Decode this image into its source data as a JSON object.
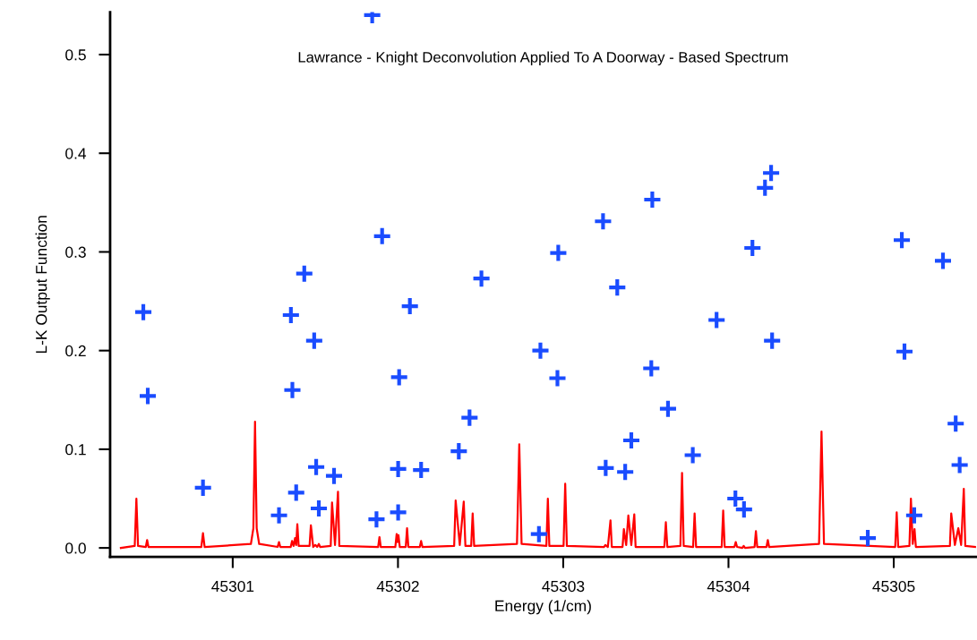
{
  "chart_data": {
    "type": "line",
    "title": "Lawrance - Knight Deconvolution Applied To A Doorway - Based Spectrum",
    "xlabel": "Energy (1/cm)",
    "ylabel": "L-K Output Function",
    "xlim": [
      45300.258,
      45305.498
    ],
    "ylim": [
      -0.009,
      0.543
    ],
    "xticks": [
      45301,
      45302,
      45303,
      45304,
      45305
    ],
    "yticks": [
      {
        "value": 0.0,
        "label": "0.0"
      },
      {
        "value": 0.1,
        "label": "0.1"
      },
      {
        "value": 0.2,
        "label": "0.2"
      },
      {
        "value": 0.3,
        "label": "0.3"
      },
      {
        "value": 0.4,
        "label": "0.4"
      },
      {
        "value": 0.5,
        "label": "0.5"
      }
    ],
    "grid": false,
    "legend": false,
    "series": [
      {
        "color": "#ff0000",
        "line_style": "solid",
        "marker": "none",
        "x": [
          45300.323,
          45300.407,
          45300.417,
          45300.427,
          45300.474,
          45300.482,
          45300.49,
          45300.81,
          45300.82,
          45300.83,
          45301.11,
          45301.125,
          45301.135,
          45301.145,
          45301.16,
          45301.272,
          45301.28,
          45301.288,
          45301.351,
          45301.359,
          45301.368,
          45301.377,
          45301.384,
          45301.391,
          45301.399,
          45301.465,
          45301.473,
          45301.487,
          45301.5,
          45301.511,
          45301.521,
          45301.529,
          45301.593,
          45301.601,
          45301.619,
          45301.637,
          45301.645,
          45301.88,
          45301.888,
          45301.896,
          45301.984,
          45301.992,
          45301.998,
          45302.003,
          45302.011,
          45302.047,
          45302.055,
          45302.063,
          45302.132,
          45302.14,
          45302.148,
          45302.34,
          45302.349,
          45302.374,
          45302.398,
          45302.408,
          45302.443,
          45302.452,
          45302.461,
          45302.72,
          45302.734,
          45302.748,
          45302.898,
          45302.907,
          45302.916,
          45303.002,
          45303.012,
          45303.022,
          45303.247,
          45303.255,
          45303.27,
          45303.286,
          45303.294,
          45303.359,
          45303.367,
          45303.381,
          45303.394,
          45303.412,
          45303.43,
          45303.438,
          45303.612,
          45303.621,
          45303.63,
          45303.709,
          45303.719,
          45303.729,
          45303.786,
          45303.795,
          45303.804,
          45303.959,
          45303.968,
          45303.977,
          45304.036,
          45304.044,
          45304.052,
          45304.084,
          45304.092,
          45304.1,
          45304.158,
          45304.166,
          45304.174,
          45304.23,
          45304.238,
          45304.246,
          45304.548,
          45304.563,
          45304.578,
          45305.009,
          45305.018,
          45305.027,
          45305.095,
          45305.104,
          45305.115,
          45305.126,
          45305.134,
          45305.34,
          45305.348,
          45305.37,
          45305.391,
          45305.408,
          45305.424,
          45305.433,
          45305.498
        ],
        "values": [
          0.0,
          0.002,
          0.05,
          0.002,
          0.001,
          0.008,
          0.001,
          0.001,
          0.015,
          0.001,
          0.004,
          0.02,
          0.128,
          0.02,
          0.004,
          0.001,
          0.006,
          0.001,
          0.001,
          0.007,
          0.002,
          0.01,
          0.003,
          0.024,
          0.002,
          0.002,
          0.023,
          0.001,
          0.003,
          0.001,
          0.004,
          0.001,
          0.002,
          0.046,
          0.003,
          0.057,
          0.002,
          0.001,
          0.011,
          0.001,
          0.001,
          0.014,
          0.006,
          0.013,
          0.001,
          0.001,
          0.02,
          0.001,
          0.001,
          0.007,
          0.001,
          0.002,
          0.048,
          0.003,
          0.047,
          0.002,
          0.002,
          0.035,
          0.002,
          0.004,
          0.105,
          0.004,
          0.002,
          0.05,
          0.002,
          0.002,
          0.065,
          0.002,
          0.001,
          0.003,
          0.001,
          0.028,
          0.001,
          0.001,
          0.019,
          0.003,
          0.033,
          0.003,
          0.034,
          0.001,
          0.001,
          0.026,
          0.001,
          0.002,
          0.076,
          0.002,
          0.001,
          0.035,
          0.001,
          0.001,
          0.038,
          0.001,
          0.001,
          0.006,
          0.001,
          0.0,
          0.002,
          0.0,
          0.001,
          0.017,
          0.001,
          0.001,
          0.008,
          0.001,
          0.004,
          0.118,
          0.004,
          0.001,
          0.036,
          0.001,
          0.002,
          0.05,
          0.004,
          0.019,
          0.001,
          0.002,
          0.035,
          0.003,
          0.02,
          0.003,
          0.06,
          0.002,
          0.001
        ]
      },
      {
        "type": "scatter",
        "color": "#1a4cff",
        "marker": "cross",
        "x": [
          45300.459,
          45300.486,
          45300.82,
          45301.28,
          45301.361,
          45301.352,
          45301.433,
          45301.384,
          45301.505,
          45301.493,
          45301.521,
          45301.613,
          45301.844,
          45301.904,
          45301.87,
          45302.001,
          45302.001,
          45302.007,
          45302.072,
          45302.14,
          45302.368,
          45302.433,
          45302.505,
          45302.853,
          45302.862,
          45302.965,
          45302.97,
          45303.241,
          45303.257,
          45303.327,
          45303.375,
          45303.412,
          45303.539,
          45303.533,
          45303.634,
          45303.784,
          45303.928,
          45304.042,
          45304.094,
          45304.145,
          45304.221,
          45304.258,
          45304.264,
          45304.843,
          45305.049,
          45305.065,
          45305.124,
          45305.298,
          45305.375,
          45305.399
        ],
        "values": [
          0.239,
          0.154,
          0.061,
          0.033,
          0.16,
          0.236,
          0.278,
          0.056,
          0.082,
          0.21,
          0.04,
          0.073,
          0.54,
          0.316,
          0.029,
          0.08,
          0.036,
          0.173,
          0.245,
          0.079,
          0.098,
          0.132,
          0.273,
          0.014,
          0.2,
          0.172,
          0.299,
          0.331,
          0.081,
          0.264,
          0.077,
          0.109,
          0.353,
          0.182,
          0.141,
          0.094,
          0.231,
          0.05,
          0.039,
          0.304,
          0.365,
          0.38,
          0.21,
          0.01,
          0.312,
          0.199,
          0.033,
          0.291,
          0.126,
          0.084
        ]
      }
    ]
  }
}
